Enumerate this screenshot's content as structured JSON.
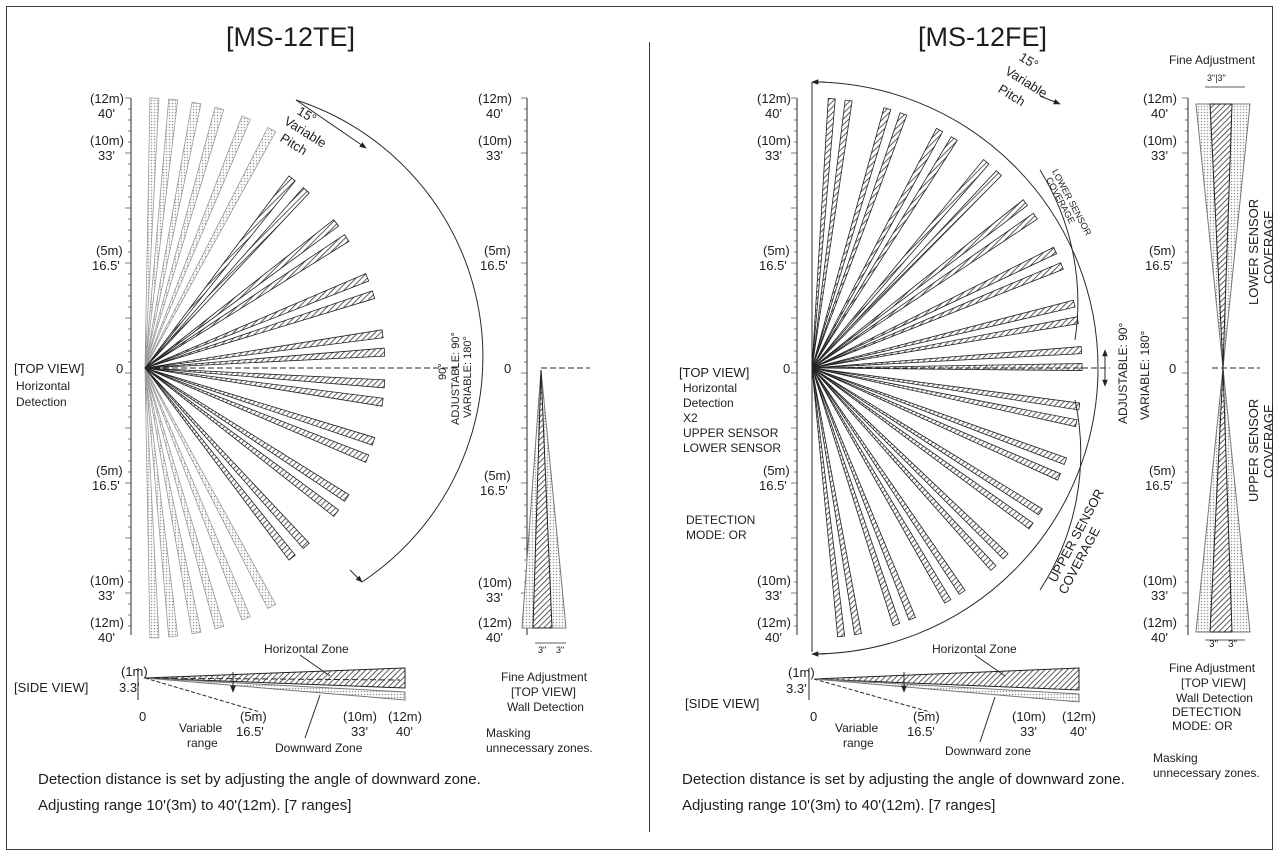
{
  "left_panel": {
    "title": "[MS-12TE]",
    "scale_top": [
      {
        "metric": "(12m)",
        "feet": "40'"
      },
      {
        "metric": "(10m)",
        "feet": "33'"
      },
      {
        "metric": "(5m)",
        "feet": "16.5'"
      }
    ],
    "zero": "0",
    "scale_bottom": [
      {
        "metric": "(5m)",
        "feet": "16.5'"
      },
      {
        "metric": "(10m)",
        "feet": "33'"
      },
      {
        "metric": "(12m)",
        "feet": "40'"
      }
    ],
    "top_view": {
      "line1": "[TOP VIEW]",
      "line2": "Horizontal",
      "line3": "Detection"
    },
    "pitch": {
      "angle": "15°",
      "line1": "Variable",
      "line2": "Pitch"
    },
    "angle_90": "90°",
    "adjustable": "ADJUSTABLE: 90°",
    "variable": "VARIABLE: 180°",
    "wall_scale": [
      {
        "metric": "(12m)",
        "feet": "40'"
      },
      {
        "metric": "(10m)",
        "feet": "33'"
      },
      {
        "metric": "(5m)",
        "feet": "16.5'"
      },
      {
        "metric": "(5m)",
        "feet": "16.5'"
      },
      {
        "metric": "(10m)",
        "feet": "33'"
      },
      {
        "metric": "(12m)",
        "feet": "40'"
      }
    ],
    "wall_zero": "0",
    "wall_dims": [
      "3\"",
      "3\""
    ],
    "wall_caption": {
      "line1": "Fine Adjustment",
      "line2": "[TOP VIEW]",
      "line3": "Wall Detection"
    },
    "masking": {
      "line1": "Masking",
      "line2": "unnecessary zones."
    },
    "side_view": {
      "label": "[SIDE VIEW]",
      "height_metric": "(1m)",
      "height_feet": "3.3'",
      "zero": "0",
      "horizontal_zone": "Horizontal Zone",
      "downward_zone": "Downward Zone",
      "variable_range": {
        "line1": "Variable",
        "line2": "range"
      },
      "ticks": [
        {
          "metric": "(5m)",
          "feet": "16.5'"
        },
        {
          "metric": "(10m)",
          "feet": "33'"
        },
        {
          "metric": "(12m)",
          "feet": "40'"
        }
      ]
    },
    "caption": {
      "line1": "Detection distance is set by adjusting the angle of downward zone.",
      "line2": "Adjusting range 10'(3m) to 40'(12m). [7 ranges]"
    }
  },
  "right_panel": {
    "title": "[MS-12FE]",
    "scale_top": [
      {
        "metric": "(12m)",
        "feet": "40'"
      },
      {
        "metric": "(10m)",
        "feet": "33'"
      },
      {
        "metric": "(5m)",
        "feet": "16.5'"
      }
    ],
    "zero": "0",
    "scale_bottom": [
      {
        "metric": "(5m)",
        "feet": "16.5'"
      },
      {
        "metric": "(10m)",
        "feet": "33'"
      },
      {
        "metric": "(12m)",
        "feet": "40'"
      }
    ],
    "top_view": {
      "line1": "[TOP VIEW]",
      "line2": "Horizontal",
      "line3": "Detection",
      "line4": "X2",
      "line5": "UPPER SENSOR",
      "line6": "LOWER SENSOR"
    },
    "detection_mode": {
      "line1": "DETECTION",
      "line2": "MODE: OR"
    },
    "pitch": {
      "angle": "15°",
      "line1": "Variable",
      "line2": "Pitch"
    },
    "lower_coverage": {
      "line1": "LOWER SENSOR",
      "line2": "COVERAGE"
    },
    "upper_coverage": {
      "line1": "UPPER SENSOR",
      "line2": "COVERAGE"
    },
    "adjustable": "ADJUSTABLE: 90°",
    "variable": "VARIABLE: 180°",
    "fine_adjustment_top": "Fine Adjustment",
    "wall_top_dims": "3\"|3\"",
    "wall_scale": [
      {
        "metric": "(12m)",
        "feet": "40'"
      },
      {
        "metric": "(10m)",
        "feet": "33'"
      },
      {
        "metric": "(5m)",
        "feet": "16.5'"
      },
      {
        "metric": "(5m)",
        "feet": "16.5'"
      },
      {
        "metric": "(10m)",
        "feet": "33'"
      },
      {
        "metric": "(12m)",
        "feet": "40'"
      }
    ],
    "wall_zero": "0",
    "wall_lower": {
      "line1": "LOWER SENSOR",
      "line2": "COVERAGE"
    },
    "wall_upper": {
      "line1": "UPPER SENSOR",
      "line2": "COVERAGE"
    },
    "wall_dims": [
      "3\"",
      "3\""
    ],
    "wall_caption": {
      "line1": "Fine Adjustment",
      "line2": "[TOP VIEW]",
      "line3": "Wall Detection",
      "line4": "DETECTION",
      "line5": "MODE: OR"
    },
    "masking": {
      "line1": "Masking",
      "line2": "unnecessary zones."
    },
    "side_view": {
      "label": "[SIDE VIEW]",
      "height_metric": "(1m)",
      "height_feet": "3.3'",
      "zero": "0",
      "horizontal_zone": "Horizontal Zone",
      "downward_zone": "Downward zone",
      "variable_range": {
        "line1": "Variable",
        "line2": "range"
      },
      "ticks": [
        {
          "metric": "(5m)",
          "feet": "16.5'"
        },
        {
          "metric": "(10m)",
          "feet": "33'"
        },
        {
          "metric": "(12m)",
          "feet": "40'"
        }
      ]
    },
    "caption": {
      "line1": "Detection distance is set by adjusting the angle of downward zone.",
      "line2": "Adjusting range 10'(3m) to 40'(12m). [7 ranges]"
    }
  },
  "colors": {
    "line": "#2a2a2a",
    "beam_light": "#bdbdbd",
    "hatch": "#3a3a3a",
    "border": "#3c3c3c"
  }
}
